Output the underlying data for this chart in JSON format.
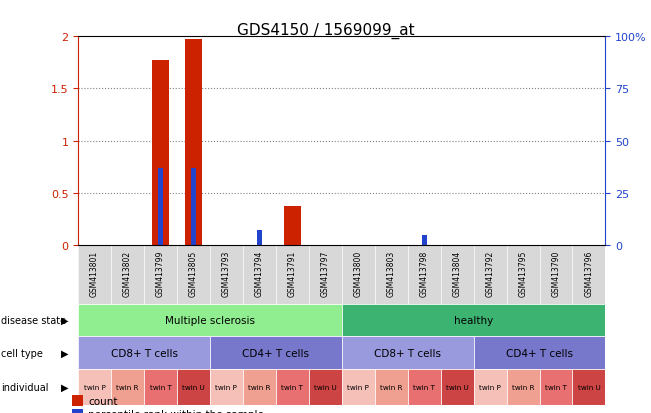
{
  "title": "GDS4150 / 1569099_at",
  "samples": [
    "GSM413801",
    "GSM413802",
    "GSM413799",
    "GSM413805",
    "GSM413793",
    "GSM413794",
    "GSM413791",
    "GSM413797",
    "GSM413800",
    "GSM413803",
    "GSM413798",
    "GSM413804",
    "GSM413792",
    "GSM413795",
    "GSM413790",
    "GSM413796"
  ],
  "counts": [
    0,
    0,
    1.77,
    1.97,
    0,
    0,
    0.37,
    0,
    0,
    0,
    0,
    0,
    0,
    0,
    0,
    0
  ],
  "percentile_ranks": [
    0,
    0,
    0.37,
    0.37,
    0,
    0.07,
    0,
    0,
    0,
    0,
    0.05,
    0,
    0,
    0,
    0,
    0
  ],
  "ylim": [
    0,
    2
  ],
  "yticks": [
    0,
    0.5,
    1,
    1.5,
    2
  ],
  "ytick_labels_left": [
    "0",
    "0.5",
    "1",
    "1.5",
    "2"
  ],
  "ytick_labels_right": [
    "0",
    "25",
    "50",
    "75",
    "100%"
  ],
  "disease_state": {
    "groups": [
      {
        "label": "Multiple sclerosis",
        "start": 0,
        "end": 8,
        "color": "#90ee90"
      },
      {
        "label": "healthy",
        "start": 8,
        "end": 16,
        "color": "#3cb371"
      }
    ]
  },
  "cell_type": {
    "groups": [
      {
        "label": "CD8+ T cells",
        "start": 0,
        "end": 4,
        "color": "#9999dd"
      },
      {
        "label": "CD4+ T cells",
        "start": 4,
        "end": 8,
        "color": "#7777cc"
      },
      {
        "label": "CD8+ T cells",
        "start": 8,
        "end": 12,
        "color": "#9999dd"
      },
      {
        "label": "CD4+ T cells",
        "start": 12,
        "end": 16,
        "color": "#7777cc"
      }
    ]
  },
  "individual": {
    "labels": [
      "twin P",
      "twin R",
      "twin T",
      "twin U",
      "twin P",
      "twin R",
      "twin T",
      "twin U",
      "twin P",
      "twin R",
      "twin T",
      "twin U",
      "twin P",
      "twin R",
      "twin T",
      "twin U"
    ],
    "colors": [
      "#f5c0b8",
      "#f0a090",
      "#e87070",
      "#cc4444",
      "#f5c0b8",
      "#f0a090",
      "#e87070",
      "#cc4444",
      "#f5c0b8",
      "#f0a090",
      "#e87070",
      "#cc4444",
      "#f5c0b8",
      "#f0a090",
      "#e87070",
      "#cc4444"
    ]
  },
  "bar_color": "#cc2200",
  "pct_color": "#2244cc",
  "bg_color": "#ffffff",
  "label_color_left": "#cc2200",
  "label_color_right": "#2244cc"
}
